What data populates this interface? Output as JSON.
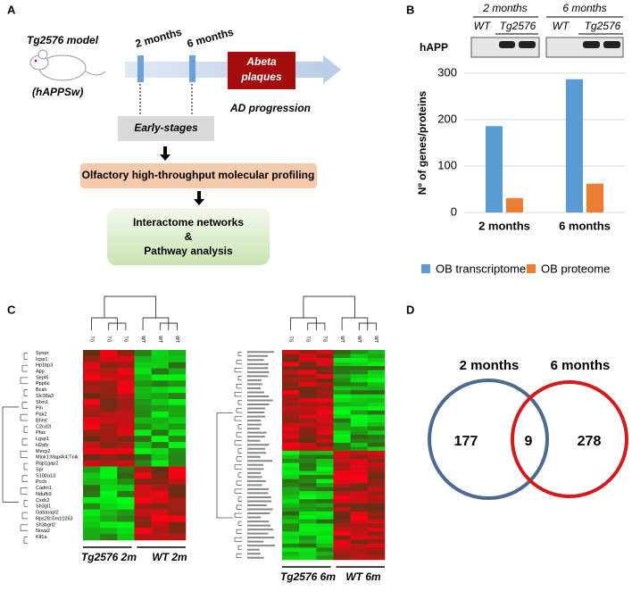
{
  "panels": [
    "A",
    "B",
    "C",
    "D"
  ],
  "diagram": {
    "model": "Tg2576 model",
    "strain": "(hAPPSw)",
    "t1": "2 months",
    "t2": "6 months",
    "plaques": [
      "Abeta",
      "plaques"
    ],
    "progression": "AD progression",
    "early": "Early-stages",
    "profiling": "Olfactory high-throughput molecular profiling",
    "analysis": [
      "Interactome networks",
      "&",
      "Pathway analysis"
    ]
  },
  "blot": {
    "times": [
      "2 months",
      "6 months"
    ],
    "lanes": [
      "WT",
      "Tg2576",
      "WT",
      "Tg2576"
    ],
    "protein": "hAPP"
  },
  "chart_data": {
    "type": "bar",
    "ylabel": "Nº of genes/proteins",
    "categories": [
      "2 months",
      "6 months"
    ],
    "series": [
      {
        "name": "OB transcriptome",
        "color": "#5b9bd5",
        "values": [
          186,
          287
        ]
      },
      {
        "name": "OB proteome",
        "color": "#ed7d31",
        "values": [
          31,
          62
        ]
      }
    ],
    "ylim": [
      0,
      300
    ],
    "yticks": [
      0,
      100,
      200,
      300
    ],
    "grid": true,
    "legend": "bottom"
  },
  "heatmaps": [
    {
      "columns": [
        "TG",
        "TG",
        "TG",
        "WT",
        "WT",
        "WT"
      ],
      "groups": [
        "Tg2576 2m",
        "WT 2m"
      ],
      "genes": [
        "Synpr",
        "Icpp1",
        "Hp1bp3",
        "App",
        "Sept6",
        "Ppp6c",
        "Bcan",
        "Slc38a3",
        "Sfxn1",
        "Pin",
        "Pak2",
        "Bhmt",
        "C2cd2l",
        "Pfas",
        "Lgsp1",
        "H2afy",
        "Mecp2",
        "Mink1;Map4k4;Tnik",
        "Rap1gap2",
        "Spr",
        "S100a13",
        "Pccb",
        "Cadm1",
        "Ndufb3",
        "Cxdc2",
        "Sh3gl1",
        "Gabarapl2",
        "Rps28;Gm10263",
        "Sh3bgrl2",
        "Nova2",
        "Kif1a"
      ]
    },
    {
      "columns": [
        "TG",
        "TG",
        "TG",
        "WT",
        "WT",
        "WT"
      ],
      "groups": [
        "Tg2576 6m",
        "WT 6m"
      ]
    }
  ],
  "venn": {
    "left": "2 months",
    "right": "6 months",
    "only_left": 177,
    "both": 9,
    "only_right": 278
  }
}
